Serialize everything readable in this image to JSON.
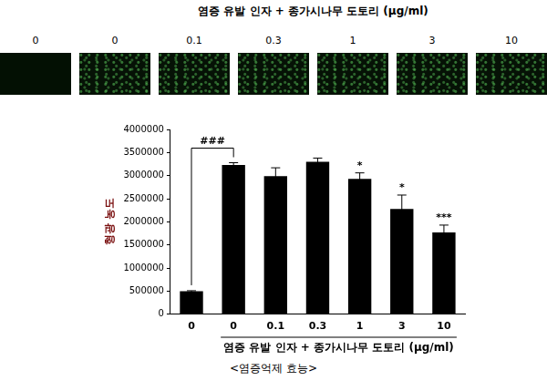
{
  "panel": {
    "title": "염증 유발 인자 + 종가시나무 도토리 (μg/ml)",
    "labels": [
      "0",
      "0",
      "0.1",
      "0.3",
      "1",
      "3",
      "10"
    ]
  },
  "chart_data": {
    "type": "bar",
    "categories": [
      "0",
      "0",
      "0.1",
      "0.3",
      "1",
      "3",
      "10"
    ],
    "values": [
      500000,
      3230000,
      2990000,
      3300000,
      2930000,
      2280000,
      1770000
    ],
    "errors": [
      10000,
      50000,
      180000,
      80000,
      130000,
      300000,
      160000
    ],
    "color": "#000000",
    "ylabel": "형광 농도",
    "xlabel": "염증 유발 인자 + 종가시나무 도토리 (μg/ml)",
    "ylim": [
      0,
      4000000
    ],
    "yticks": [
      0,
      500000,
      1000000,
      1500000,
      2000000,
      2500000,
      3000000,
      3500000,
      4000000
    ],
    "grid": false,
    "comparison": {
      "from": 0,
      "to": 1,
      "text": "###"
    },
    "significance": [
      {
        "index": 4,
        "text": "*"
      },
      {
        "index": 5,
        "text": "*"
      },
      {
        "index": 6,
        "text": "***"
      }
    ],
    "caption": "<염증억제 효능>"
  }
}
